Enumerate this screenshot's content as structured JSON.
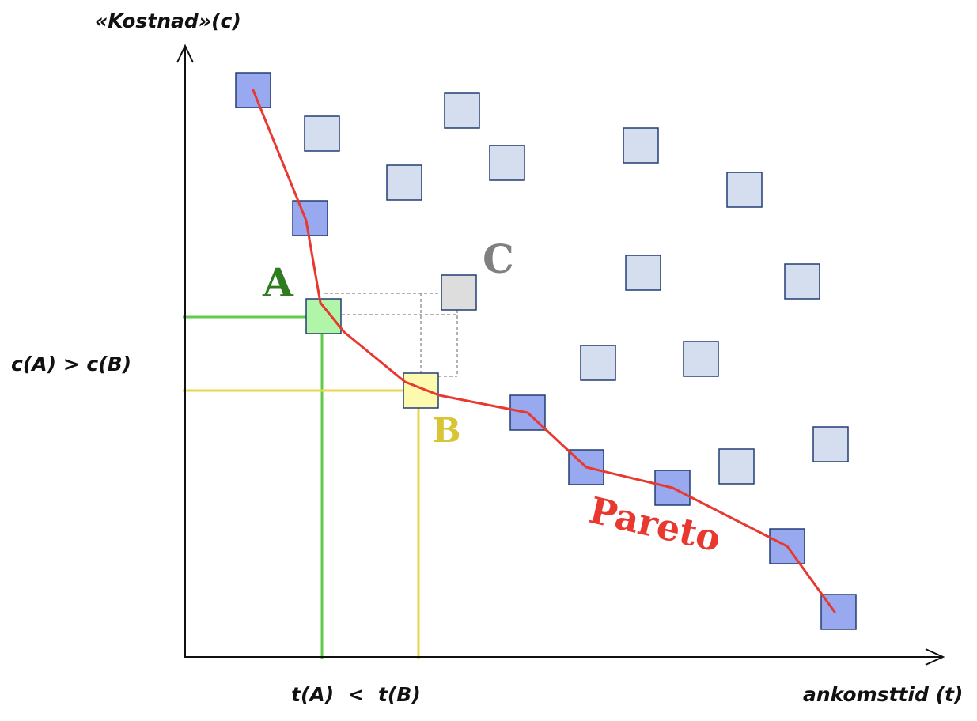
{
  "labels": {
    "y_axis": "«Kostnad»(c)",
    "x_axis": "ankomsttid (t)",
    "cost_compare": "c(A) > c(B)",
    "time_compare": "t(A)  <  t(B)",
    "point_a": "A",
    "point_b": "B",
    "point_c": "C",
    "pareto": "Pareto"
  },
  "colors": {
    "pareto_line": "#e8382f",
    "pareto_fill": "#98a9ef",
    "other_fill": "#d4deee",
    "box_stroke": "#223d73",
    "a_fill": "#b1f5a8",
    "a_guide": "#61cc4a",
    "a_text": "#2e7b20",
    "b_fill": "#fbfaaf",
    "b_guide": "#ead64c",
    "b_text": "#d9c433",
    "c_fill": "#dddddd",
    "c_text": "#808080",
    "dashed": "#888888"
  }
}
